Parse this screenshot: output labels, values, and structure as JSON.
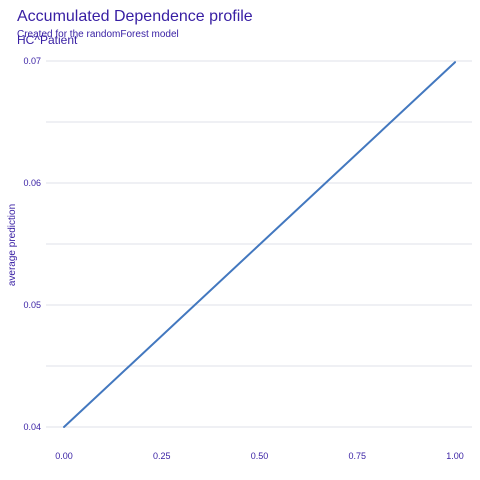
{
  "colors": {
    "text": "#371ea3",
    "line": "#4378bf",
    "grid": "#dfe0e8"
  },
  "chart_data": {
    "type": "line",
    "title": "Accumulated Dependence profile",
    "subtitle": "Created for the randomForest model",
    "panel_label": "HC^Patient",
    "xlabel": "",
    "ylabel": "average prediction",
    "xlim": [
      0,
      1
    ],
    "ylim": [
      0.04,
      0.07
    ],
    "x_ticks": [
      0.0,
      0.25,
      0.5,
      0.75,
      1.0
    ],
    "x_tick_labels": [
      "0.00",
      "0.25",
      "0.50",
      "0.75",
      "1.00"
    ],
    "y_ticks": [
      0.04,
      0.05,
      0.06,
      0.07
    ],
    "y_tick_labels": [
      "0.04",
      "0.05",
      "0.06",
      "0.07"
    ],
    "grid": true,
    "legend": "none",
    "series": [
      {
        "x": [
          0.0,
          1.0
        ],
        "values": [
          0.04,
          0.0699
        ]
      }
    ]
  }
}
